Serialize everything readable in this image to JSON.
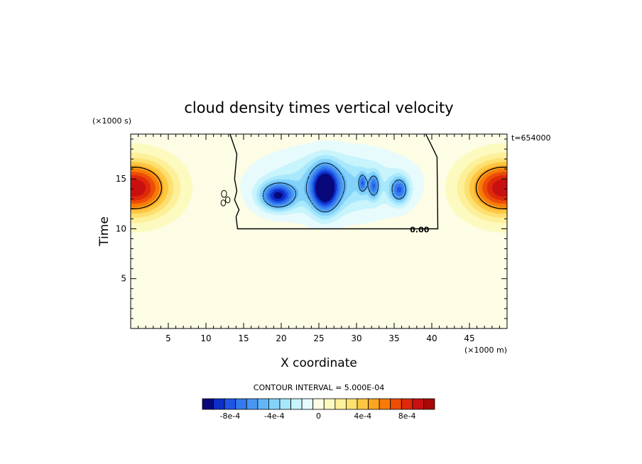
{
  "chart_data": {
    "type": "heatmap",
    "title": "cloud density times vertical velocity",
    "xlabel": "X coordinate",
    "ylabel": "Time",
    "x_units": "(×1000 m)",
    "y_units": "(×1000 s)",
    "time_annotation": "t=654000",
    "xlim": [
      0,
      50
    ],
    "ylim": [
      0,
      19.5
    ],
    "xticks": [
      5,
      10,
      15,
      20,
      25,
      30,
      35,
      40,
      45
    ],
    "yticks": [
      5,
      10,
      15
    ],
    "xtick_labels": [
      "5",
      "10",
      "15",
      "20",
      "25",
      "30",
      "35",
      "40",
      "45"
    ],
    "ytick_labels": [
      "5",
      "10",
      "15"
    ],
    "zero_contour_label": "0.00",
    "contour_interval_text": "CONTOUR INTERVAL = 5.000E-04",
    "colorbar": {
      "levels": [
        "-0.00105",
        "-0.00095",
        "-0.00085",
        "-0.00075",
        "-0.00065",
        "-0.00055",
        "-0.00045",
        "-0.00035",
        "-0.00025",
        "-0.00015",
        "-0.00005",
        "0.00005",
        "0.00015",
        "0.00025",
        "0.00035",
        "0.00045",
        "0.00055",
        "0.00065",
        "0.00075",
        "0.00085",
        "0.00095",
        "0.00105"
      ],
      "colors": [
        "#08087a",
        "#0c2ec9",
        "#1f55e6",
        "#3479ee",
        "#4896f2",
        "#62b6f6",
        "#82d2fa",
        "#a8e8fc",
        "#c8f4fc",
        "#e8fbfc",
        "#fdfde6",
        "#fdfac0",
        "#fdf09a",
        "#fde070",
        "#fdc744",
        "#fca51e",
        "#f77b0a",
        "#ec4e06",
        "#de2a0a",
        "#c81010",
        "#a80808"
      ],
      "tick_values": [
        -0.0008,
        -0.0004,
        0,
        0.0004,
        0.0008
      ],
      "tick_labels": [
        "-8e-4",
        "-4e-4",
        "0",
        "4e-4",
        "8e-4"
      ]
    },
    "features": [
      {
        "kind": "positive_max",
        "x": 0.5,
        "y": 14.1,
        "value": 0.00095,
        "sx": 4.5,
        "sy": 2.6
      },
      {
        "kind": "positive_max",
        "x": 49.5,
        "y": 14.1,
        "value": 0.00095,
        "sx": 4.5,
        "sy": 2.6
      },
      {
        "kind": "negative_min",
        "x": 19.5,
        "y": 13.3,
        "value": -0.00085,
        "sx": 2.2,
        "sy": 1.3
      },
      {
        "kind": "negative_min",
        "x": 25.8,
        "y": 14.0,
        "value": -0.00095,
        "sx": 1.8,
        "sy": 2.3
      },
      {
        "kind": "negative_min",
        "x": 30.8,
        "y": 14.6,
        "value": -0.00045,
        "sx": 0.5,
        "sy": 0.9
      },
      {
        "kind": "negative_min",
        "x": 32.3,
        "y": 14.3,
        "value": -0.0005,
        "sx": 0.7,
        "sy": 1.2
      },
      {
        "kind": "negative_min",
        "x": 35.7,
        "y": 13.9,
        "value": -0.00065,
        "sx": 1.2,
        "sy": 1.3
      },
      {
        "kind": "negative_background",
        "x": 27.0,
        "y": 14.5,
        "value": -0.0004,
        "sx": 8.5,
        "sy": 2.9
      }
    ],
    "cloud_region": {
      "x": [
        13.2,
        40.8
      ],
      "y": [
        10.0,
        19.5
      ]
    },
    "grid": false
  }
}
